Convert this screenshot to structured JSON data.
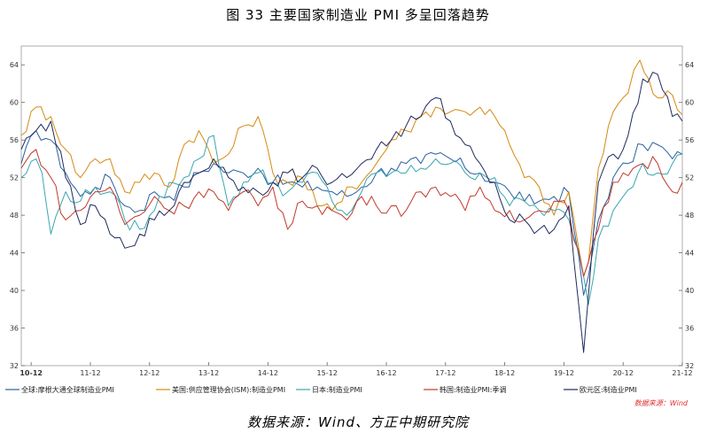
{
  "title": "图 33   主要国家制造业 PMI 多呈回落趋势",
  "footer": "数据来源：Wind、方正中期研究院",
  "chart_data": {
    "type": "line",
    "title": "",
    "xlabel": "",
    "ylabel": "",
    "x_range": [
      2010.75,
      2021.917
    ],
    "ylim": [
      32,
      66
    ],
    "y_ticks": [
      32,
      36,
      40,
      44,
      48,
      52,
      56,
      60,
      64
    ],
    "x_ticks": [
      {
        "label": "10-12",
        "x": 2010.917
      },
      {
        "label": "11-12",
        "x": 2011.917
      },
      {
        "label": "12-12",
        "x": 2012.917
      },
      {
        "label": "13-12",
        "x": 2013.917
      },
      {
        "label": "14-12",
        "x": 2014.917
      },
      {
        "label": "15-12",
        "x": 2015.917
      },
      {
        "label": "16-12",
        "x": 2016.917
      },
      {
        "label": "17-12",
        "x": 2017.917
      },
      {
        "label": "18-12",
        "x": 2018.917
      },
      {
        "label": "19-12",
        "x": 2019.917
      },
      {
        "label": "20-12",
        "x": 2020.917
      },
      {
        "label": "21-12",
        "x": 2021.917
      }
    ],
    "grid": false,
    "legend_position": "bottom",
    "source_note": "数据来源：Wind",
    "series": [
      {
        "name": "全球:摩根大通全球制造业PMI",
        "color": "#2b5f9e",
        "points": [
          [
            2010.75,
            53.5
          ],
          [
            2011.0,
            57.0
          ],
          [
            2011.25,
            56.0
          ],
          [
            2011.5,
            52.5
          ],
          [
            2011.75,
            50.0
          ],
          [
            2012.0,
            51.0
          ],
          [
            2012.25,
            52.0
          ],
          [
            2012.5,
            49.0
          ],
          [
            2012.75,
            48.5
          ],
          [
            2013.0,
            50.5
          ],
          [
            2013.25,
            50.0
          ],
          [
            2013.5,
            51.0
          ],
          [
            2013.75,
            52.5
          ],
          [
            2014.0,
            53.5
          ],
          [
            2014.25,
            52.5
          ],
          [
            2014.5,
            52.5
          ],
          [
            2014.75,
            53.0
          ],
          [
            2015.0,
            51.5
          ],
          [
            2015.25,
            51.5
          ],
          [
            2015.5,
            51.0
          ],
          [
            2015.75,
            51.0
          ],
          [
            2016.0,
            50.5
          ],
          [
            2016.25,
            50.0
          ],
          [
            2016.5,
            51.0
          ],
          [
            2016.75,
            52.5
          ],
          [
            2017.0,
            53.0
          ],
          [
            2017.25,
            53.5
          ],
          [
            2017.5,
            53.5
          ],
          [
            2017.75,
            54.5
          ],
          [
            2018.0,
            54.0
          ],
          [
            2018.25,
            53.0
          ],
          [
            2018.5,
            52.5
          ],
          [
            2018.75,
            51.5
          ],
          [
            2019.0,
            50.5
          ],
          [
            2019.25,
            49.5
          ],
          [
            2019.5,
            49.5
          ],
          [
            2019.75,
            50.0
          ],
          [
            2020.0,
            50.4
          ],
          [
            2020.25,
            39.5
          ],
          [
            2020.33,
            41.5
          ],
          [
            2020.5,
            47.5
          ],
          [
            2020.75,
            52.0
          ],
          [
            2021.0,
            53.5
          ],
          [
            2021.25,
            55.5
          ],
          [
            2021.5,
            55.5
          ],
          [
            2021.75,
            54.0
          ],
          [
            2021.917,
            54.5
          ]
        ]
      },
      {
        "name": "美国:供应管理协会(ISM):制造业PMI",
        "color": "#d68910",
        "points": [
          [
            2010.75,
            56.5
          ],
          [
            2011.0,
            59.5
          ],
          [
            2011.25,
            58.5
          ],
          [
            2011.5,
            55.0
          ],
          [
            2011.75,
            52.0
          ],
          [
            2012.0,
            54.0
          ],
          [
            2012.25,
            54.0
          ],
          [
            2012.5,
            50.5
          ],
          [
            2012.75,
            51.5
          ],
          [
            2013.0,
            52.5
          ],
          [
            2013.25,
            51.0
          ],
          [
            2013.5,
            55.5
          ],
          [
            2013.75,
            57.0
          ],
          [
            2014.0,
            53.5
          ],
          [
            2014.25,
            54.5
          ],
          [
            2014.5,
            57.5
          ],
          [
            2014.75,
            58.5
          ],
          [
            2015.0,
            52.5
          ],
          [
            2015.25,
            51.5
          ],
          [
            2015.5,
            52.0
          ],
          [
            2015.75,
            49.0
          ],
          [
            2016.0,
            48.5
          ],
          [
            2016.25,
            51.0
          ],
          [
            2016.5,
            51.5
          ],
          [
            2016.75,
            53.5
          ],
          [
            2017.0,
            56.0
          ],
          [
            2017.25,
            57.0
          ],
          [
            2017.5,
            58.5
          ],
          [
            2017.75,
            59.5
          ],
          [
            2018.0,
            59.0
          ],
          [
            2018.25,
            59.0
          ],
          [
            2018.5,
            59.5
          ],
          [
            2018.75,
            58.5
          ],
          [
            2019.0,
            55.5
          ],
          [
            2019.25,
            52.0
          ],
          [
            2019.5,
            51.0
          ],
          [
            2019.75,
            48.0
          ],
          [
            2020.0,
            50.5
          ],
          [
            2020.25,
            41.5
          ],
          [
            2020.33,
            43.0
          ],
          [
            2020.5,
            53.0
          ],
          [
            2020.75,
            59.0
          ],
          [
            2020.917,
            60.5
          ],
          [
            2021.0,
            61.0
          ],
          [
            2021.2,
            64.5
          ],
          [
            2021.5,
            60.5
          ],
          [
            2021.75,
            60.8
          ],
          [
            2021.917,
            58.7
          ]
        ]
      },
      {
        "name": "日本:制造业PMI",
        "color": "#3aa6b0",
        "points": [
          [
            2010.75,
            52.0
          ],
          [
            2011.0,
            54.0
          ],
          [
            2011.1,
            52.5
          ],
          [
            2011.25,
            46.0
          ],
          [
            2011.5,
            50.5
          ],
          [
            2011.75,
            49.5
          ],
          [
            2012.0,
            51.0
          ],
          [
            2012.25,
            50.5
          ],
          [
            2012.5,
            47.5
          ],
          [
            2012.75,
            46.5
          ],
          [
            2013.0,
            48.5
          ],
          [
            2013.25,
            51.5
          ],
          [
            2013.5,
            52.0
          ],
          [
            2013.75,
            54.0
          ],
          [
            2014.0,
            56.5
          ],
          [
            2014.25,
            49.0
          ],
          [
            2014.5,
            51.5
          ],
          [
            2014.75,
            52.5
          ],
          [
            2015.0,
            51.5
          ],
          [
            2015.25,
            50.5
          ],
          [
            2015.5,
            51.5
          ],
          [
            2015.75,
            52.5
          ],
          [
            2016.0,
            49.5
          ],
          [
            2016.25,
            48.0
          ],
          [
            2016.5,
            50.5
          ],
          [
            2016.75,
            52.5
          ],
          [
            2017.0,
            52.5
          ],
          [
            2017.25,
            52.5
          ],
          [
            2017.5,
            53.0
          ],
          [
            2017.75,
            54.0
          ],
          [
            2018.0,
            53.5
          ],
          [
            2018.25,
            52.5
          ],
          [
            2018.5,
            52.5
          ],
          [
            2018.75,
            52.0
          ],
          [
            2019.0,
            49.0
          ],
          [
            2019.25,
            49.5
          ],
          [
            2019.5,
            48.5
          ],
          [
            2019.75,
            48.5
          ],
          [
            2020.0,
            47.5
          ],
          [
            2020.25,
            41.5
          ],
          [
            2020.33,
            38.5
          ],
          [
            2020.5,
            45.5
          ],
          [
            2020.75,
            48.5
          ],
          [
            2020.917,
            50.0
          ],
          [
            2021.25,
            53.5
          ],
          [
            2021.5,
            52.5
          ],
          [
            2021.75,
            53.5
          ],
          [
            2021.917,
            54.5
          ]
        ]
      },
      {
        "name": "韩国:制造业PMI:季调",
        "color": "#c0392b",
        "points": [
          [
            2010.75,
            53.0
          ],
          [
            2011.0,
            55.0
          ],
          [
            2011.25,
            52.0
          ],
          [
            2011.5,
            47.5
          ],
          [
            2011.75,
            48.5
          ],
          [
            2012.0,
            50.5
          ],
          [
            2012.25,
            51.0
          ],
          [
            2012.5,
            47.0
          ],
          [
            2012.75,
            48.0
          ],
          [
            2013.0,
            50.0
          ],
          [
            2013.25,
            48.5
          ],
          [
            2013.5,
            49.0
          ],
          [
            2013.75,
            50.5
          ],
          [
            2014.0,
            50.5
          ],
          [
            2014.25,
            48.5
          ],
          [
            2014.5,
            50.5
          ],
          [
            2014.75,
            49.0
          ],
          [
            2015.0,
            51.0
          ],
          [
            2015.25,
            46.5
          ],
          [
            2015.5,
            49.5
          ],
          [
            2015.75,
            49.0
          ],
          [
            2016.0,
            48.5
          ],
          [
            2016.25,
            47.5
          ],
          [
            2016.5,
            50.0
          ],
          [
            2016.75,
            49.0
          ],
          [
            2017.0,
            49.0
          ],
          [
            2017.25,
            48.5
          ],
          [
            2017.5,
            50.5
          ],
          [
            2017.75,
            51.0
          ],
          [
            2018.0,
            50.0
          ],
          [
            2018.25,
            48.5
          ],
          [
            2018.5,
            51.0
          ],
          [
            2018.75,
            48.5
          ],
          [
            2019.0,
            48.5
          ],
          [
            2019.25,
            47.5
          ],
          [
            2019.5,
            48.5
          ],
          [
            2019.75,
            49.5
          ],
          [
            2020.0,
            48.5
          ],
          [
            2020.25,
            41.5
          ],
          [
            2020.33,
            43.0
          ],
          [
            2020.5,
            46.5
          ],
          [
            2020.75,
            51.5
          ],
          [
            2020.917,
            52.5
          ],
          [
            2021.25,
            53.5
          ],
          [
            2021.5,
            53.5
          ],
          [
            2021.75,
            50.5
          ],
          [
            2021.917,
            51.5
          ]
        ]
      },
      {
        "name": "欧元区:制造业PMI",
        "color": "#1f2a5c",
        "points": [
          [
            2010.75,
            55.0
          ],
          [
            2011.0,
            57.0
          ],
          [
            2011.25,
            58.0
          ],
          [
            2011.5,
            52.0
          ],
          [
            2011.75,
            47.0
          ],
          [
            2012.0,
            49.0
          ],
          [
            2012.25,
            46.0
          ],
          [
            2012.5,
            44.5
          ],
          [
            2012.75,
            46.0
          ],
          [
            2013.0,
            47.5
          ],
          [
            2013.25,
            48.5
          ],
          [
            2013.5,
            51.5
          ],
          [
            2013.75,
            52.5
          ],
          [
            2014.0,
            54.0
          ],
          [
            2014.25,
            52.0
          ],
          [
            2014.5,
            51.0
          ],
          [
            2014.75,
            50.5
          ],
          [
            2015.0,
            51.5
          ],
          [
            2015.25,
            52.5
          ],
          [
            2015.5,
            52.0
          ],
          [
            2015.75,
            53.0
          ],
          [
            2016.0,
            51.5
          ],
          [
            2016.25,
            52.0
          ],
          [
            2016.5,
            53.5
          ],
          [
            2016.75,
            55.0
          ],
          [
            2017.0,
            56.0
          ],
          [
            2017.25,
            57.5
          ],
          [
            2017.5,
            58.5
          ],
          [
            2017.75,
            60.5
          ],
          [
            2018.0,
            58.0
          ],
          [
            2018.25,
            55.5
          ],
          [
            2018.5,
            53.5
          ],
          [
            2018.75,
            51.5
          ],
          [
            2019.0,
            47.5
          ],
          [
            2019.25,
            47.5
          ],
          [
            2019.5,
            46.5
          ],
          [
            2019.75,
            46.5
          ],
          [
            2020.0,
            49.0
          ],
          [
            2020.25,
            33.4
          ],
          [
            2020.33,
            39.4
          ],
          [
            2020.5,
            51.5
          ],
          [
            2020.75,
            54.5
          ],
          [
            2020.917,
            55.0
          ],
          [
            2021.25,
            62.5
          ],
          [
            2021.5,
            63.0
          ],
          [
            2021.75,
            58.5
          ],
          [
            2021.917,
            58.0
          ]
        ]
      }
    ]
  }
}
